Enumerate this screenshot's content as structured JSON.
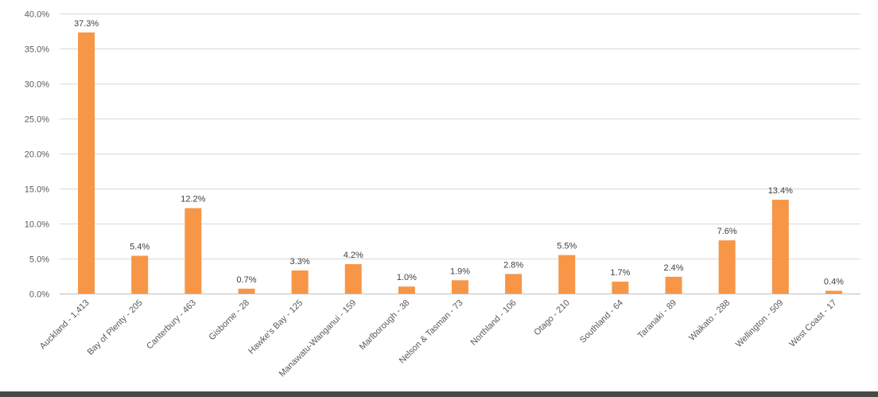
{
  "chart_data": {
    "type": "bar",
    "title": "",
    "xlabel": "",
    "ylabel": "",
    "ylim": [
      0,
      40
    ],
    "yticks": [
      0,
      5,
      10,
      15,
      20,
      25,
      30,
      35,
      40
    ],
    "ytick_labels": [
      "0.0%",
      "5.0%",
      "10.0%",
      "15.0%",
      "20.0%",
      "25.0%",
      "30.0%",
      "35.0%",
      "40.0%"
    ],
    "grid": true,
    "legend": "none",
    "bar_color": "#f79646",
    "grid_color": "#d9d9d9",
    "categories": [
      "Auckland - 1,413",
      "Bay of Plenty - 205",
      "Canterbury - 463",
      "Gisborne - 28",
      "Hawke's Bay - 125",
      "Manawatu-Wanganui - 159",
      "Marlborough - 38",
      "Nelson & Tasman - 73",
      "Northland - 106",
      "Otago - 210",
      "Southland - 64",
      "Taranaki - 89",
      "Waikato - 288",
      "Wellington - 509",
      "West Coast - 17"
    ],
    "values": [
      37.3,
      5.4,
      12.2,
      0.7,
      3.3,
      4.2,
      1.0,
      1.9,
      2.8,
      5.5,
      1.7,
      2.4,
      7.6,
      13.4,
      0.4
    ],
    "data_labels": [
      "37.3%",
      "5.4%",
      "12.2%",
      "0.7%",
      "3.3%",
      "4.2%",
      "1.0%",
      "1.9%",
      "2.8%",
      "5.5%",
      "1.7%",
      "2.4%",
      "7.6%",
      "13.4%",
      "0.4%"
    ]
  }
}
